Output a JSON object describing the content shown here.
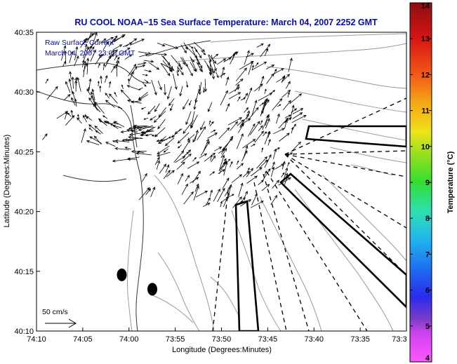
{
  "chart_data": {
    "type": "scatter",
    "title": "RU COOL  NOAA−15  Sea Surface Temperature:  March 04, 2007 2252 GMT",
    "xlabel": "Longitude (Degrees:Minutes)",
    "ylabel": "Latitude (Degrees:Minutes)",
    "x_ticks": [
      "74:10",
      "74:05",
      "74:00",
      "73:55",
      "73:50",
      "73:45",
      "73:40",
      "73:35",
      "73:3"
    ],
    "y_ticks": [
      "40:35",
      "40:30",
      "40:25",
      "40:20",
      "40:15",
      "40:10"
    ],
    "xlim": [
      "74:10 W",
      "73:30 W"
    ],
    "ylim": [
      "40:10 N",
      "40:35 N"
    ],
    "annotations": [
      "Raw Surface Current",
      "March 04, 2007 23:06 GMT"
    ],
    "scale_label": "50 cm/s",
    "colorbar": {
      "label": "Temperature (°C)",
      "ticks": [
        "4",
        "5",
        "6",
        "7",
        "8",
        "9",
        "10",
        "11",
        "12",
        "13",
        "14"
      ],
      "range": [
        4,
        14
      ]
    },
    "markers": [
      {
        "lon": -74.013,
        "lat": 40.245
      },
      {
        "lon": -73.958,
        "lat": 40.225
      }
    ],
    "grid": false
  }
}
